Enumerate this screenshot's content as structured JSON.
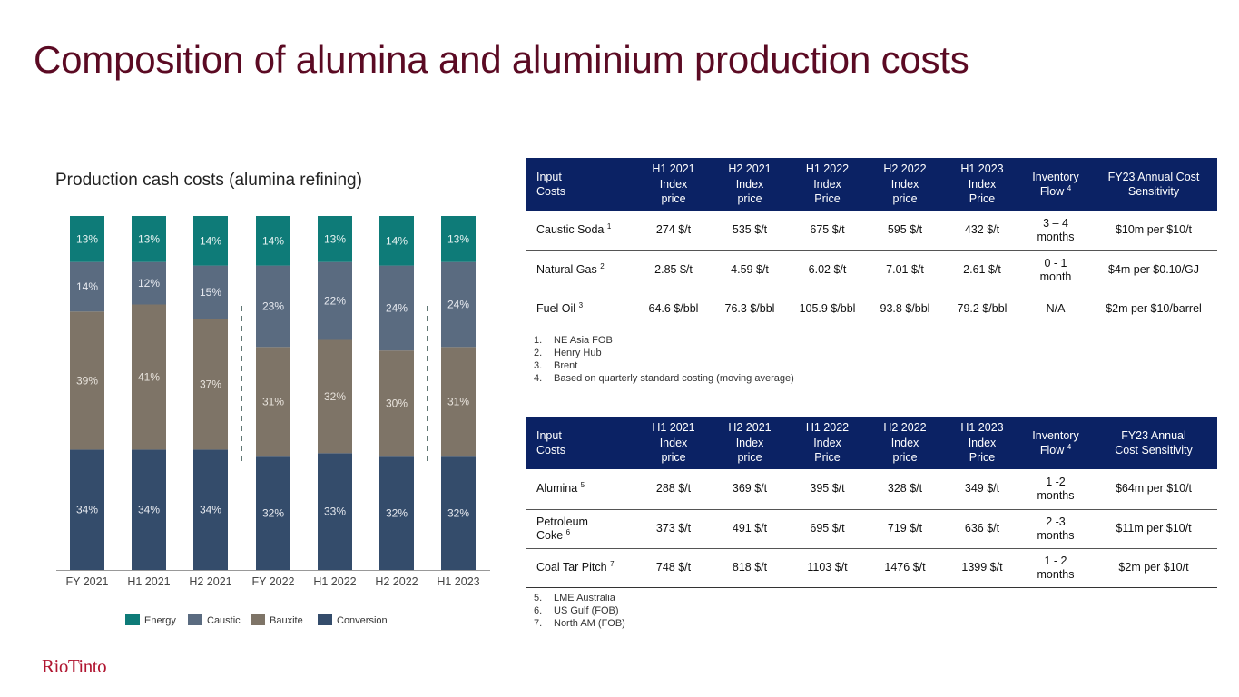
{
  "page": {
    "title": "Composition of alumina and aluminium production costs"
  },
  "chart_data": {
    "type": "bar",
    "stacked": true,
    "title": "Production cash costs (alumina refining)",
    "categories": [
      "FY 2021",
      "H1 2021",
      "H2 2021",
      "FY 2022",
      "H1 2022",
      "H2 2022",
      "H1 2023"
    ],
    "series": [
      {
        "name": "Conversion",
        "color": "#344c6b",
        "values": [
          34,
          34,
          34,
          32,
          33,
          32,
          32
        ]
      },
      {
        "name": "Bauxite",
        "color": "#7e7467",
        "values": [
          39,
          41,
          37,
          31,
          32,
          30,
          31
        ]
      },
      {
        "name": "Caustic",
        "color": "#5a6b80",
        "values": [
          14,
          12,
          15,
          23,
          22,
          24,
          24
        ]
      },
      {
        "name": "Energy",
        "color": "#0e7b78",
        "values": [
          13,
          13,
          14,
          14,
          13,
          14,
          13
        ]
      }
    ],
    "labels": {
      "Conversion": [
        "34%",
        "34%",
        "34%",
        "32%",
        "33%",
        "32%",
        "32%"
      ],
      "Bauxite": [
        "39%",
        "41%",
        "37%",
        "31%",
        "32%",
        "30%",
        "31%"
      ],
      "Caustic": [
        "14%",
        "12%",
        "15%",
        "23%",
        "22%",
        "24%",
        "24%"
      ],
      "Energy": [
        "13%",
        "13%",
        "14%",
        "14%",
        "13%",
        "14%",
        "13%"
      ]
    },
    "legend": [
      "Energy",
      "Caustic",
      "Bauxite",
      "Conversion"
    ],
    "legend_position": "bottom",
    "ylim": [
      0,
      100
    ],
    "grid": false
  },
  "table1": {
    "headers": [
      "Input\nCosts",
      "H1 2021\nIndex\nprice",
      "H2 2021\nIndex\nprice",
      "H1 2022\nIndex\nPrice",
      "H2 2022\nIndex\nprice",
      "H1 2023\nIndex\nPrice",
      "Inventory\nFlow",
      "FY23 Annual Cost\nSensitivity"
    ],
    "inventory_note": "4",
    "rows": [
      {
        "name": "Caustic Soda",
        "note": "1",
        "cells": [
          "274 $/t",
          "535 $/t",
          "675 $/t",
          "595 $/t",
          "432 $/t",
          "3 – 4\nmonths",
          "$10m per $10/t"
        ]
      },
      {
        "name": "Natural Gas",
        "note": "2",
        "cells": [
          "2.85 $/t",
          "4.59 $/t",
          "6.02 $/t",
          "7.01 $/t",
          "2.61 $/t",
          "0 - 1\nmonth",
          "$4m per $0.10/GJ"
        ]
      },
      {
        "name": "Fuel Oil",
        "note": "3",
        "cells": [
          "64.6 $/bbl",
          "76.3 $/bbl",
          "105.9 $/bbl",
          "93.8 $/bbl",
          "79.2 $/bbl",
          "N/A",
          "$2m per $10/barrel"
        ]
      }
    ],
    "footnotes": [
      {
        "num": "1.",
        "text": "NE Asia FOB"
      },
      {
        "num": "2.",
        "text": "Henry Hub"
      },
      {
        "num": "3.",
        "text": "Brent"
      },
      {
        "num": "4.",
        "text": "Based on quarterly standard costing (moving average)"
      }
    ]
  },
  "table2": {
    "headers": [
      "Input\nCosts",
      "H1 2021\nIndex\nprice",
      "H2 2021\nIndex\nprice",
      "H1 2022\nIndex\nPrice",
      "H2 2022\nIndex\nprice",
      "H1 2023\nIndex\nPrice",
      "Inventory\nFlow",
      "FY23 Annual\nCost Sensitivity"
    ],
    "inventory_note": "4",
    "rows": [
      {
        "name": "Alumina",
        "note": "5",
        "cells": [
          "288 $/t",
          "369 $/t",
          "395 $/t",
          "328 $/t",
          "349 $/t",
          "1 -2\nmonths",
          "$64m per $10/t"
        ]
      },
      {
        "name": "Petroleum\nCoke",
        "note": "6",
        "cells": [
          "373 $/t",
          "491 $/t",
          "695 $/t",
          "719 $/t",
          "636 $/t",
          "2 -3\nmonths",
          "$11m per $10/t"
        ]
      },
      {
        "name": "Coal Tar Pitch",
        "note": "7",
        "cells": [
          "748 $/t",
          "818 $/t",
          "1103 $/t",
          "1476 $/t",
          "1399 $/t",
          "1 - 2\nmonths",
          "$2m per $10/t"
        ]
      }
    ],
    "footnotes": [
      {
        "num": "5.",
        "text": "LME Australia"
      },
      {
        "num": "6.",
        "text": "US Gulf (FOB)"
      },
      {
        "num": "7.",
        "text": "North AM (FOB)"
      }
    ]
  },
  "brand": {
    "logo_text": "RioTinto",
    "accent": "#5b0a23",
    "header_bg": "#0b2264"
  }
}
